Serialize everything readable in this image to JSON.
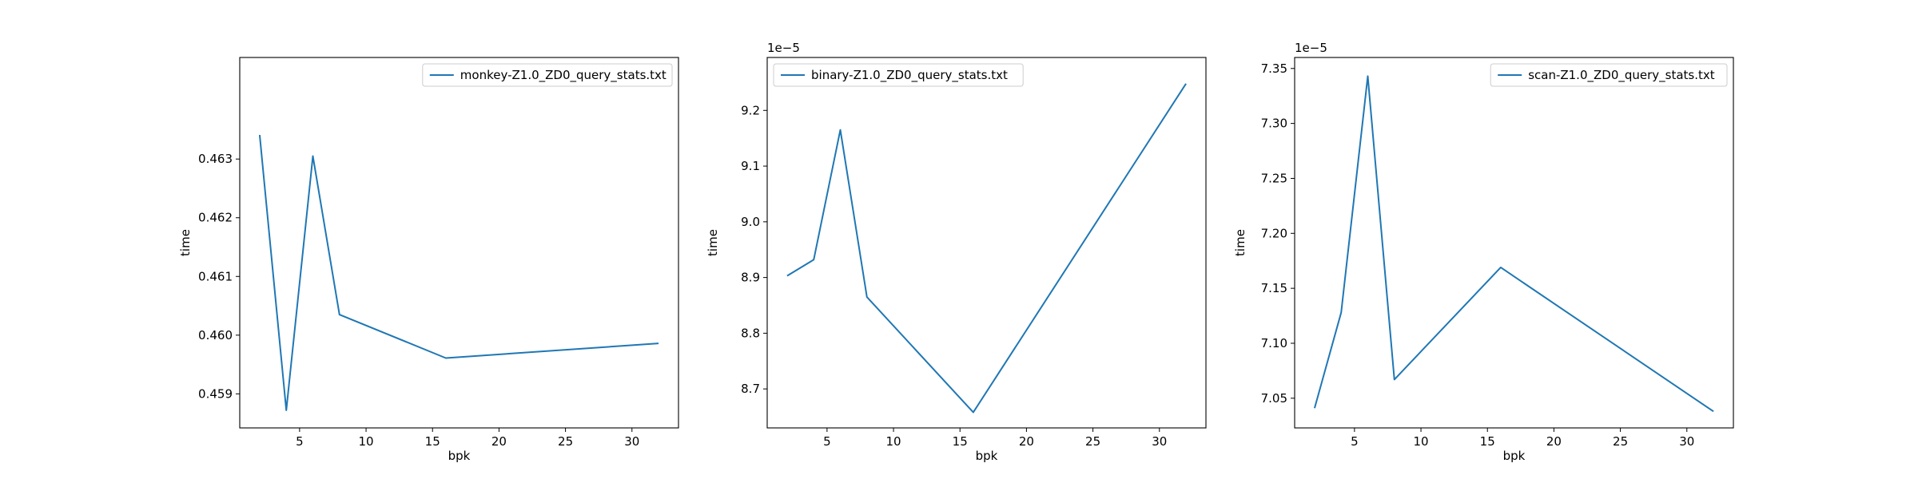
{
  "chart_data": [
    {
      "type": "line",
      "xlabel": "bpk",
      "ylabel": "time",
      "offset_text": "",
      "xlim": [
        0.5,
        33.5
      ],
      "ylim": [
        0.45842,
        0.46473
      ],
      "xticks": [
        5,
        10,
        15,
        20,
        25,
        30
      ],
      "xtick_labels": [
        "5",
        "10",
        "15",
        "20",
        "25",
        "30"
      ],
      "yticks": [
        0.459,
        0.46,
        0.461,
        0.462,
        0.463
      ],
      "ytick_labels": [
        "0.459",
        "0.460",
        "0.461",
        "0.462",
        "0.463"
      ],
      "legend_position": "top-right",
      "grid": false,
      "series": [
        {
          "name": "monkey-Z1.0_ZD0_query_stats.txt",
          "color": "#1f77b4",
          "x": [
            2,
            4,
            6,
            8,
            16,
            32
          ],
          "y": [
            0.46341,
            0.45872,
            0.46305,
            0.46035,
            0.45961,
            0.45986
          ]
        }
      ]
    },
    {
      "type": "line",
      "xlabel": "bpk",
      "ylabel": "time",
      "offset_text": "1e−5",
      "xlim": [
        0.5,
        33.5
      ],
      "ylim": [
        8.63,
        9.295
      ],
      "xticks": [
        5,
        10,
        15,
        20,
        25,
        30
      ],
      "xtick_labels": [
        "5",
        "10",
        "15",
        "20",
        "25",
        "30"
      ],
      "yticks": [
        8.7,
        8.8,
        8.9,
        9.0,
        9.1,
        9.2
      ],
      "ytick_labels": [
        "8.7",
        "8.8",
        "8.9",
        "9.0",
        "9.1",
        "9.2"
      ],
      "legend_position": "top-left",
      "grid": false,
      "series": [
        {
          "name": "binary-Z1.0_ZD0_query_stats.txt",
          "color": "#1f77b4",
          "x": [
            2,
            4,
            6,
            8,
            16,
            32
          ],
          "y": [
            8.903,
            8.932,
            9.165,
            8.865,
            8.658,
            9.248
          ]
        }
      ]
    },
    {
      "type": "line",
      "xlabel": "bpk",
      "ylabel": "time",
      "offset_text": "1e−5",
      "xlim": [
        0.5,
        33.5
      ],
      "ylim": [
        7.023,
        7.36
      ],
      "xticks": [
        5,
        10,
        15,
        20,
        25,
        30
      ],
      "xtick_labels": [
        "5",
        "10",
        "15",
        "20",
        "25",
        "30"
      ],
      "yticks": [
        7.05,
        7.1,
        7.15,
        7.2,
        7.25,
        7.3,
        7.35
      ],
      "ytick_labels": [
        "7.05",
        "7.10",
        "7.15",
        "7.20",
        "7.25",
        "7.30",
        "7.35"
      ],
      "legend_position": "top-right",
      "grid": false,
      "series": [
        {
          "name": "scan-Z1.0_ZD0_query_stats.txt",
          "color": "#1f77b4",
          "x": [
            2,
            4,
            6,
            8,
            16,
            32
          ],
          "y": [
            7.041,
            7.128,
            7.343,
            7.067,
            7.169,
            7.038
          ]
        }
      ]
    }
  ]
}
